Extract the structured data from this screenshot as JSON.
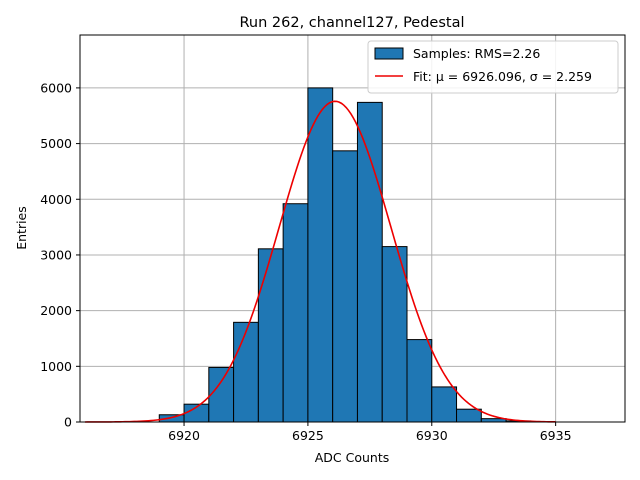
{
  "chart_data": {
    "type": "bar",
    "title": "Run 262, channel127, Pedestal",
    "xlabel": "ADC Counts",
    "ylabel": "Entries",
    "xlim": [
      6915.8,
      6937.8
    ],
    "ylim": [
      0,
      6950
    ],
    "xticks": [
      6920,
      6925,
      6930,
      6935
    ],
    "yticks": [
      0,
      1000,
      2000,
      3000,
      4000,
      5000,
      6000
    ],
    "grid": true,
    "legend_position": "top-right",
    "histogram": {
      "name": "Samples: RMS=2.26",
      "color": "#1f77b4",
      "bin_width": 1,
      "bin_edges_start": [
        6919,
        6920,
        6921,
        6922,
        6923,
        6924,
        6925,
        6926,
        6927,
        6928,
        6929,
        6930,
        6931,
        6932,
        6933
      ],
      "counts": [
        130,
        320,
        980,
        1790,
        3110,
        3920,
        6000,
        4870,
        5740,
        3150,
        1480,
        630,
        230,
        60,
        20
      ]
    },
    "fit": {
      "name": "Fit: μ = 6926.096, σ = 2.259",
      "color": "#ee0000",
      "mu": 6926.096,
      "sigma": 2.259,
      "amplitude": 5760,
      "x_range": [
        6916,
        6935
      ]
    }
  }
}
